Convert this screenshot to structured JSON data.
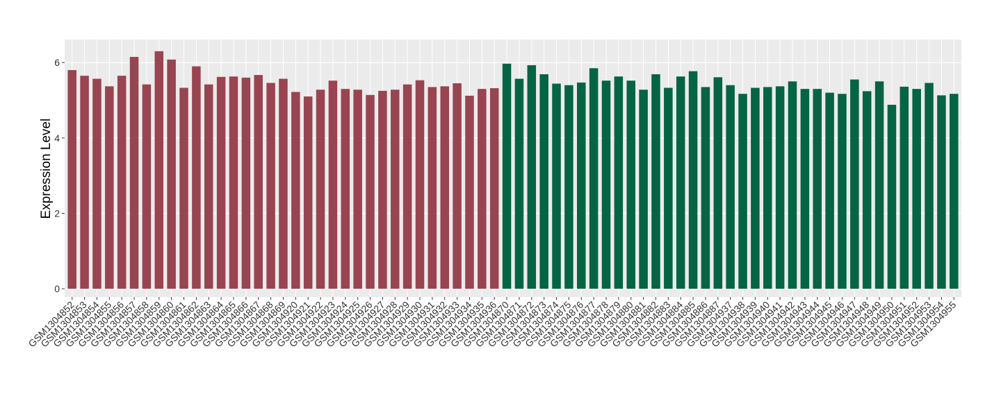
{
  "chart_data": {
    "type": "bar",
    "y_label": "Expression Level",
    "categories": [
      "GSM1304852",
      "GSM1304853",
      "GSM1304854",
      "GSM1304855",
      "GSM1304856",
      "GSM1304857",
      "GSM1304858",
      "GSM1304859",
      "GSM1304860",
      "GSM1304861",
      "GSM1304862",
      "GSM1304863",
      "GSM1304864",
      "GSM1304865",
      "GSM1304866",
      "GSM1304867",
      "GSM1304868",
      "GSM1304869",
      "GSM1304920",
      "GSM1304921",
      "GSM1304922",
      "GSM1304923",
      "GSM1304924",
      "GSM1304925",
      "GSM1304926",
      "GSM1304927",
      "GSM1304928",
      "GSM1304929",
      "GSM1304930",
      "GSM1304931",
      "GSM1304932",
      "GSM1304933",
      "GSM1304934",
      "GSM1304935",
      "GSM1304936",
      "GSM1304870",
      "GSM1304871",
      "GSM1304872",
      "GSM1304873",
      "GSM1304874",
      "GSM1304875",
      "GSM1304876",
      "GSM1304877",
      "GSM1304878",
      "GSM1304879",
      "GSM1304880",
      "GSM1304881",
      "GSM1304882",
      "GSM1304883",
      "GSM1304884",
      "GSM1304885",
      "GSM1304886",
      "GSM1304887",
      "GSM1304937",
      "GSM1304938",
      "GSM1304939",
      "GSM1304940",
      "GSM1304941",
      "GSM1304942",
      "GSM1304943",
      "GSM1304944",
      "GSM1304945",
      "GSM1304946",
      "GSM1304947",
      "GSM1304948",
      "GSM1304949",
      "GSM1304950",
      "GSM1304951",
      "GSM1304952",
      "GSM1304953",
      "GSM1304954",
      "GSM1304955"
    ],
    "values": [
      5.8,
      5.65,
      5.57,
      5.37,
      5.65,
      6.15,
      5.42,
      6.3,
      6.08,
      5.33,
      5.9,
      5.42,
      5.62,
      5.63,
      5.6,
      5.67,
      5.46,
      5.57,
      5.22,
      5.1,
      5.28,
      5.52,
      5.3,
      5.28,
      5.14,
      5.25,
      5.28,
      5.42,
      5.53,
      5.35,
      5.37,
      5.45,
      5.12,
      5.3,
      5.32,
      5.97,
      5.57,
      5.93,
      5.69,
      5.44,
      5.4,
      5.47,
      5.85,
      5.52,
      5.63,
      5.52,
      5.28,
      5.69,
      5.33,
      5.63,
      5.77,
      5.35,
      5.61,
      5.4,
      5.17,
      5.33,
      5.35,
      5.37,
      5.5,
      5.3,
      5.3,
      5.2,
      5.17,
      5.55,
      5.24,
      5.5,
      4.88,
      5.36,
      5.3,
      5.46,
      5.13,
      5.17
    ],
    "colors": [
      "#994451",
      "#994451",
      "#994451",
      "#994451",
      "#994451",
      "#994451",
      "#994451",
      "#994451",
      "#994451",
      "#994451",
      "#994451",
      "#994451",
      "#994451",
      "#994451",
      "#994451",
      "#994451",
      "#994451",
      "#994451",
      "#994451",
      "#994451",
      "#994451",
      "#994451",
      "#994451",
      "#994451",
      "#994451",
      "#994451",
      "#994451",
      "#994451",
      "#994451",
      "#994451",
      "#994451",
      "#994451",
      "#994451",
      "#994451",
      "#994451",
      "#046443",
      "#046443",
      "#046443",
      "#046443",
      "#046443",
      "#046443",
      "#046443",
      "#046443",
      "#046443",
      "#046443",
      "#046443",
      "#046443",
      "#046443",
      "#046443",
      "#046443",
      "#046443",
      "#046443",
      "#046443",
      "#046443",
      "#046443",
      "#046443",
      "#046443",
      "#046443",
      "#046443",
      "#046443",
      "#046443",
      "#046443",
      "#046443",
      "#046443",
      "#046443",
      "#046443",
      "#046443",
      "#046443",
      "#046443",
      "#046443",
      "#046443",
      "#046443",
      "#046443"
    ],
    "ylim": [
      -0.22,
      6.61
    ],
    "yticks": [
      0,
      2,
      4,
      6
    ],
    "grid": true
  }
}
